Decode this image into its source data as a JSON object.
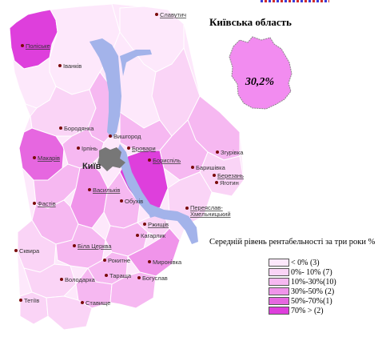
{
  "region": {
    "title": "Київська область",
    "value": "30,2%",
    "fill": "#f28cf0"
  },
  "legend": {
    "title": "Середній рівень рентабельності за три роки %",
    "items": [
      {
        "label": "< 0% (3)",
        "color": "#fde8fb"
      },
      {
        "label": "0%- 10% (7)",
        "color": "#fad4f6"
      },
      {
        "label": "10%-30%(10)",
        "color": "#f6b8f1"
      },
      {
        "label": "30%-50% (2)",
        "color": "#f094ea"
      },
      {
        "label": "50%-70%(1)",
        "color": "#e667e0"
      },
      {
        "label": "70% > (2)",
        "color": "#de3fdc"
      }
    ]
  },
  "colors": {
    "river": "#a3b3ea",
    "kyiv_city": "#777777",
    "district_border": "#ffffff",
    "city_dot": "#7a0a0a"
  },
  "capital": "Київ",
  "cities": [
    {
      "id": "slavutych",
      "name": "Славутич",
      "link": true
    },
    {
      "id": "poliske",
      "name": "Поліське",
      "link": true
    },
    {
      "id": "ivankiv",
      "name": "Іванків",
      "link": false
    },
    {
      "id": "borodianka",
      "name": "Бородянка",
      "link": false
    },
    {
      "id": "vyshhorod",
      "name": "Вишгород",
      "link": false
    },
    {
      "id": "irpin",
      "name": "Ірпінь",
      "link": false
    },
    {
      "id": "brovary",
      "name": "Бровари",
      "link": true
    },
    {
      "id": "zghurivka",
      "name": "Згурівка",
      "link": false
    },
    {
      "id": "makariv",
      "name": "Макарів",
      "link": true
    },
    {
      "id": "boryspil",
      "name": "Бориспіль",
      "link": true
    },
    {
      "id": "baryshivka",
      "name": "Баришівка",
      "link": false
    },
    {
      "id": "berezan",
      "name": "Березань",
      "link": true
    },
    {
      "id": "vasylkiv",
      "name": "Васильків",
      "link": true
    },
    {
      "id": "yahotyn",
      "name": "Яготин",
      "link": false
    },
    {
      "id": "fastiv",
      "name": "Фастів",
      "link": true
    },
    {
      "id": "obukhiv",
      "name": "Обухів",
      "link": false
    },
    {
      "id": "pereiaslav",
      "name": "Переяслав-Хмельницький",
      "link": true
    },
    {
      "id": "rzhyshchiv",
      "name": "Ржищів",
      "link": true
    },
    {
      "id": "kaharlyk",
      "name": "Кагарлик",
      "link": false
    },
    {
      "id": "skvyra",
      "name": "Сквира",
      "link": false
    },
    {
      "id": "bila-tserkva",
      "name": "Біла Церква",
      "link": true
    },
    {
      "id": "rokytne",
      "name": "Рокитне",
      "link": false
    },
    {
      "id": "myronivka",
      "name": "Миронівка",
      "link": false
    },
    {
      "id": "volodarka",
      "name": "Володарка",
      "link": false
    },
    {
      "id": "tarashcha",
      "name": "Тараща",
      "link": false
    },
    {
      "id": "bohuslav",
      "name": "Богуслав",
      "link": false
    },
    {
      "id": "tetiiv",
      "name": "Тетіїв",
      "link": false
    },
    {
      "id": "stavyshche",
      "name": "Ставище",
      "link": false
    }
  ]
}
